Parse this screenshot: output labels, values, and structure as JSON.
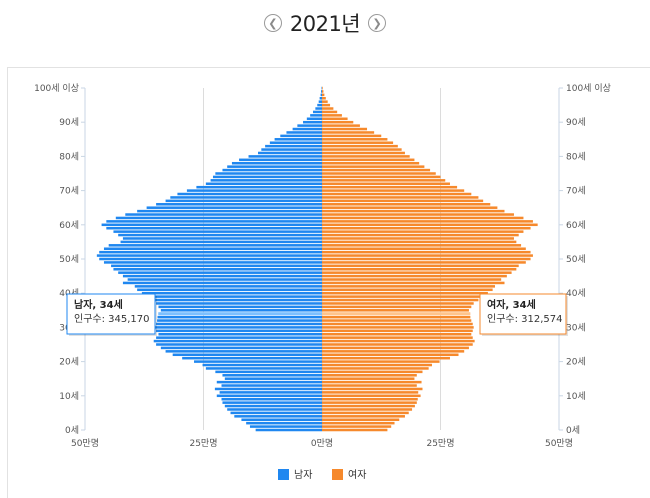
{
  "header": {
    "year_label": "2021년",
    "prev_icon": "chevron-left-icon",
    "next_icon": "chevron-right-icon"
  },
  "colors": {
    "male": "#1f87f0",
    "female": "#f6892c"
  },
  "tooltips": {
    "male": {
      "title": "남자, 34세",
      "body": "인구수: 345,170"
    },
    "female": {
      "title": "여자, 34세",
      "body": "인구수: 312,574"
    }
  },
  "chart_data": {
    "type": "bar",
    "orientation": "horizontal-pyramid",
    "ages": [
      0,
      1,
      2,
      3,
      4,
      5,
      6,
      7,
      8,
      9,
      10,
      11,
      12,
      13,
      14,
      15,
      16,
      17,
      18,
      19,
      20,
      21,
      22,
      23,
      24,
      25,
      26,
      27,
      28,
      29,
      30,
      31,
      32,
      33,
      34,
      35,
      36,
      37,
      38,
      39,
      40,
      41,
      42,
      43,
      44,
      45,
      46,
      47,
      48,
      49,
      50,
      51,
      52,
      53,
      54,
      55,
      56,
      57,
      58,
      59,
      60,
      61,
      62,
      63,
      64,
      65,
      66,
      67,
      68,
      69,
      70,
      71,
      72,
      73,
      74,
      75,
      76,
      77,
      78,
      79,
      80,
      81,
      82,
      83,
      84,
      85,
      86,
      87,
      88,
      89,
      90,
      91,
      92,
      93,
      94,
      95,
      96,
      97,
      98,
      99,
      100
    ],
    "y_tick_labels": [
      "0세",
      "10세",
      "20세",
      "30세",
      "40세",
      "50세",
      "60세",
      "70세",
      "80세",
      "90세",
      "100세 이상"
    ],
    "x_tick_labels": [
      "50만명",
      "25만명",
      "0만명",
      "25만명",
      "50만명"
    ],
    "xlim": [
      -500000,
      500000
    ],
    "series": [
      {
        "name": "남자",
        "values": [
          140000,
          152000,
          160000,
          170000,
          185000,
          193000,
          200000,
          205000,
          210000,
          212000,
          222000,
          216000,
          226000,
          212000,
          222000,
          205000,
          210000,
          225000,
          245000,
          252000,
          270000,
          295000,
          315000,
          330000,
          340000,
          350000,
          355000,
          350000,
          345000,
          350000,
          355000,
          350000,
          348000,
          347000,
          345170,
          340000,
          345000,
          350000,
          360000,
          370000,
          380000,
          390000,
          395000,
          420000,
          410000,
          420000,
          430000,
          440000,
          445000,
          460000,
          470000,
          475000,
          470000,
          460000,
          450000,
          425000,
          420000,
          430000,
          440000,
          455000,
          465000,
          455000,
          435000,
          415000,
          390000,
          370000,
          350000,
          330000,
          320000,
          305000,
          285000,
          265000,
          245000,
          235000,
          230000,
          225000,
          210000,
          200000,
          190000,
          175000,
          155000,
          135000,
          128000,
          120000,
          110000,
          100000,
          88000,
          75000,
          62000,
          52000,
          40000,
          32000,
          25000,
          19000,
          14000,
          10000,
          7000,
          5000,
          3000,
          2000,
          1000
        ]
      },
      {
        "name": "여자",
        "values": [
          138000,
          146000,
          153000,
          163000,
          175000,
          183000,
          190000,
          196000,
          200000,
          202000,
          208000,
          203000,
          212000,
          200000,
          210000,
          195000,
          200000,
          212000,
          225000,
          232000,
          248000,
          270000,
          288000,
          300000,
          310000,
          318000,
          322000,
          318000,
          315000,
          318000,
          320000,
          318000,
          315000,
          313000,
          312574,
          310000,
          315000,
          320000,
          330000,
          340000,
          350000,
          360000,
          365000,
          385000,
          378000,
          390000,
          400000,
          410000,
          415000,
          430000,
          440000,
          445000,
          440000,
          430000,
          420000,
          410000,
          405000,
          415000,
          425000,
          440000,
          455000,
          445000,
          425000,
          405000,
          385000,
          370000,
          355000,
          340000,
          330000,
          315000,
          300000,
          285000,
          270000,
          260000,
          250000,
          240000,
          228000,
          216000,
          205000,
          195000,
          185000,
          175000,
          168000,
          160000,
          150000,
          138000,
          125000,
          110000,
          95000,
          80000,
          66000,
          54000,
          42000,
          32000,
          24000,
          17000,
          12000,
          8000,
          5000,
          3000,
          1500
        ]
      }
    ],
    "legend": [
      "남자",
      "여자"
    ],
    "legend_position": "bottom",
    "grid": "vertical"
  }
}
